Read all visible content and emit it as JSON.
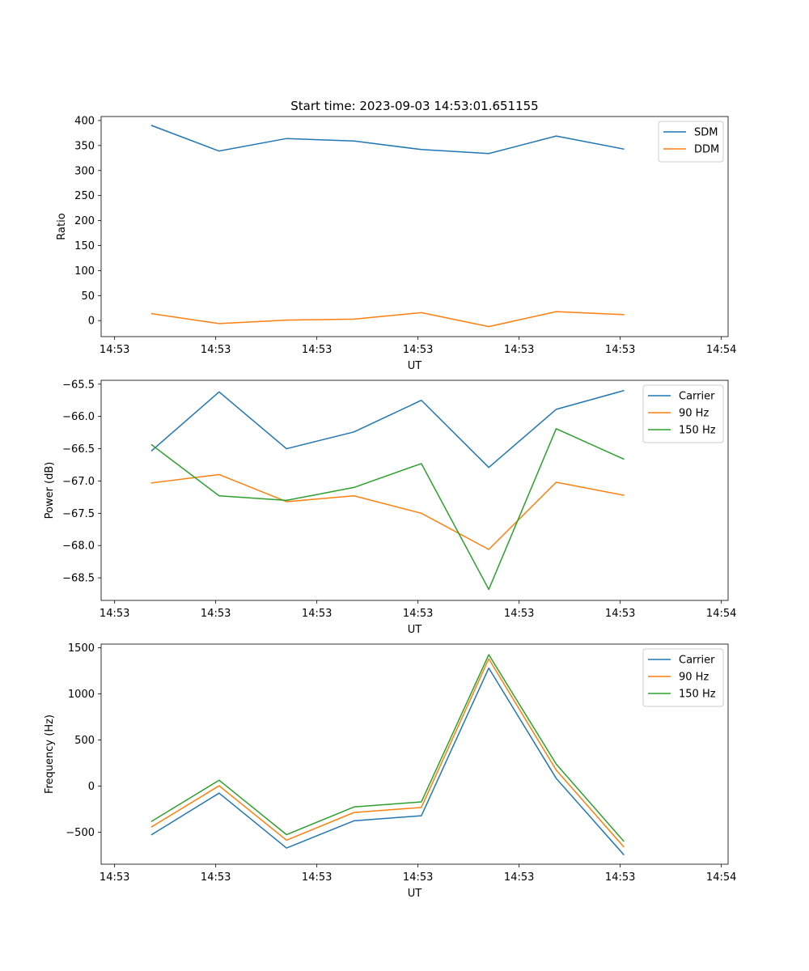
{
  "colors": {
    "blue": "#1f77b4",
    "orange": "#ff7f0e",
    "green": "#2ca02c",
    "axes": "#000000",
    "background": "#ffffff"
  },
  "chart_data": [
    {
      "type": "line",
      "title": "Start time: 2023-09-03 14:53:01.651155",
      "xlabel": "UT",
      "ylabel": "Ratio",
      "xlim": [
        -0.2,
        9.1
      ],
      "ylim": [
        -32,
        408
      ],
      "x": [
        0.55,
        1.55,
        2.55,
        3.55,
        4.55,
        5.55,
        6.55,
        7.55
      ],
      "x_ticks": [
        0,
        1.5,
        3,
        4.5,
        6,
        7.5,
        9
      ],
      "x_tick_labels": [
        "14:53",
        "14:53",
        "14:53",
        "14:53",
        "14:53",
        "14:53",
        "14:54"
      ],
      "y_ticks": [
        0,
        50,
        100,
        150,
        200,
        250,
        300,
        350,
        400
      ],
      "y_tick_labels": [
        "0",
        "50",
        "100",
        "150",
        "200",
        "250",
        "300",
        "350",
        "400"
      ],
      "legend_position": "top-right",
      "series": [
        {
          "name": "SDM",
          "color": "#1f77b4",
          "values": [
            390,
            339,
            364,
            359,
            342,
            334,
            369,
            343
          ]
        },
        {
          "name": "DDM",
          "color": "#ff7f0e",
          "values": [
            14,
            -6,
            1,
            3,
            16,
            -12,
            18,
            12
          ]
        }
      ]
    },
    {
      "type": "line",
      "title": "",
      "xlabel": "UT",
      "ylabel": "Power (dB)",
      "xlim": [
        -0.2,
        9.1
      ],
      "ylim": [
        -68.85,
        -65.44
      ],
      "x": [
        0.55,
        1.55,
        2.55,
        3.55,
        4.55,
        5.55,
        6.55,
        7.55
      ],
      "x_ticks": [
        0,
        1.5,
        3,
        4.5,
        6,
        7.5,
        9
      ],
      "x_tick_labels": [
        "14:53",
        "14:53",
        "14:53",
        "14:53",
        "14:53",
        "14:53",
        "14:54"
      ],
      "y_ticks": [
        -65.5,
        -66.0,
        -66.5,
        -67.0,
        -67.5,
        -68.0,
        -68.5
      ],
      "y_tick_labels": [
        "−65.5",
        "−66.0",
        "−66.5",
        "−67.0",
        "−67.5",
        "−68.0",
        "−68.5"
      ],
      "legend_position": "top-right",
      "series": [
        {
          "name": "Carrier",
          "color": "#1f77b4",
          "values": [
            -66.53,
            -65.62,
            -66.5,
            -66.24,
            -65.75,
            -66.79,
            -65.89,
            -65.6
          ]
        },
        {
          "name": "90 Hz",
          "color": "#ff7f0e",
          "values": [
            -67.03,
            -66.9,
            -67.32,
            -67.23,
            -67.5,
            -68.06,
            -67.02,
            -67.22
          ]
        },
        {
          "name": "150 Hz",
          "color": "#2ca02c",
          "values": [
            -66.44,
            -67.23,
            -67.3,
            -67.1,
            -66.73,
            -68.68,
            -66.19,
            -66.66
          ]
        }
      ]
    },
    {
      "type": "line",
      "title": "",
      "xlabel": "UT",
      "ylabel": "Frequency (Hz)",
      "xlim": [
        -0.2,
        9.1
      ],
      "ylim": [
        -845,
        1540
      ],
      "x": [
        0.55,
        1.55,
        2.55,
        3.55,
        4.55,
        5.55,
        6.55,
        7.55
      ],
      "x_ticks": [
        0,
        1.5,
        3,
        4.5,
        6,
        7.5,
        9
      ],
      "x_tick_labels": [
        "14:53",
        "14:53",
        "14:53",
        "14:53",
        "14:53",
        "14:53",
        "14:54"
      ],
      "y_ticks": [
        -500,
        0,
        500,
        1000,
        1500
      ],
      "y_tick_labels": [
        "−500",
        "0",
        "500",
        "1000",
        "1500"
      ],
      "legend_position": "top-right",
      "series": [
        {
          "name": "Carrier",
          "color": "#1f77b4",
          "values": [
            -525,
            -75,
            -670,
            -375,
            -320,
            1280,
            85,
            -740
          ]
        },
        {
          "name": "90 Hz",
          "color": "#ff7f0e",
          "values": [
            -440,
            5,
            -585,
            -285,
            -230,
            1380,
            175,
            -655
          ]
        },
        {
          "name": "150 Hz",
          "color": "#2ca02c",
          "values": [
            -380,
            65,
            -525,
            -225,
            -170,
            1425,
            240,
            -595
          ]
        }
      ]
    }
  ]
}
